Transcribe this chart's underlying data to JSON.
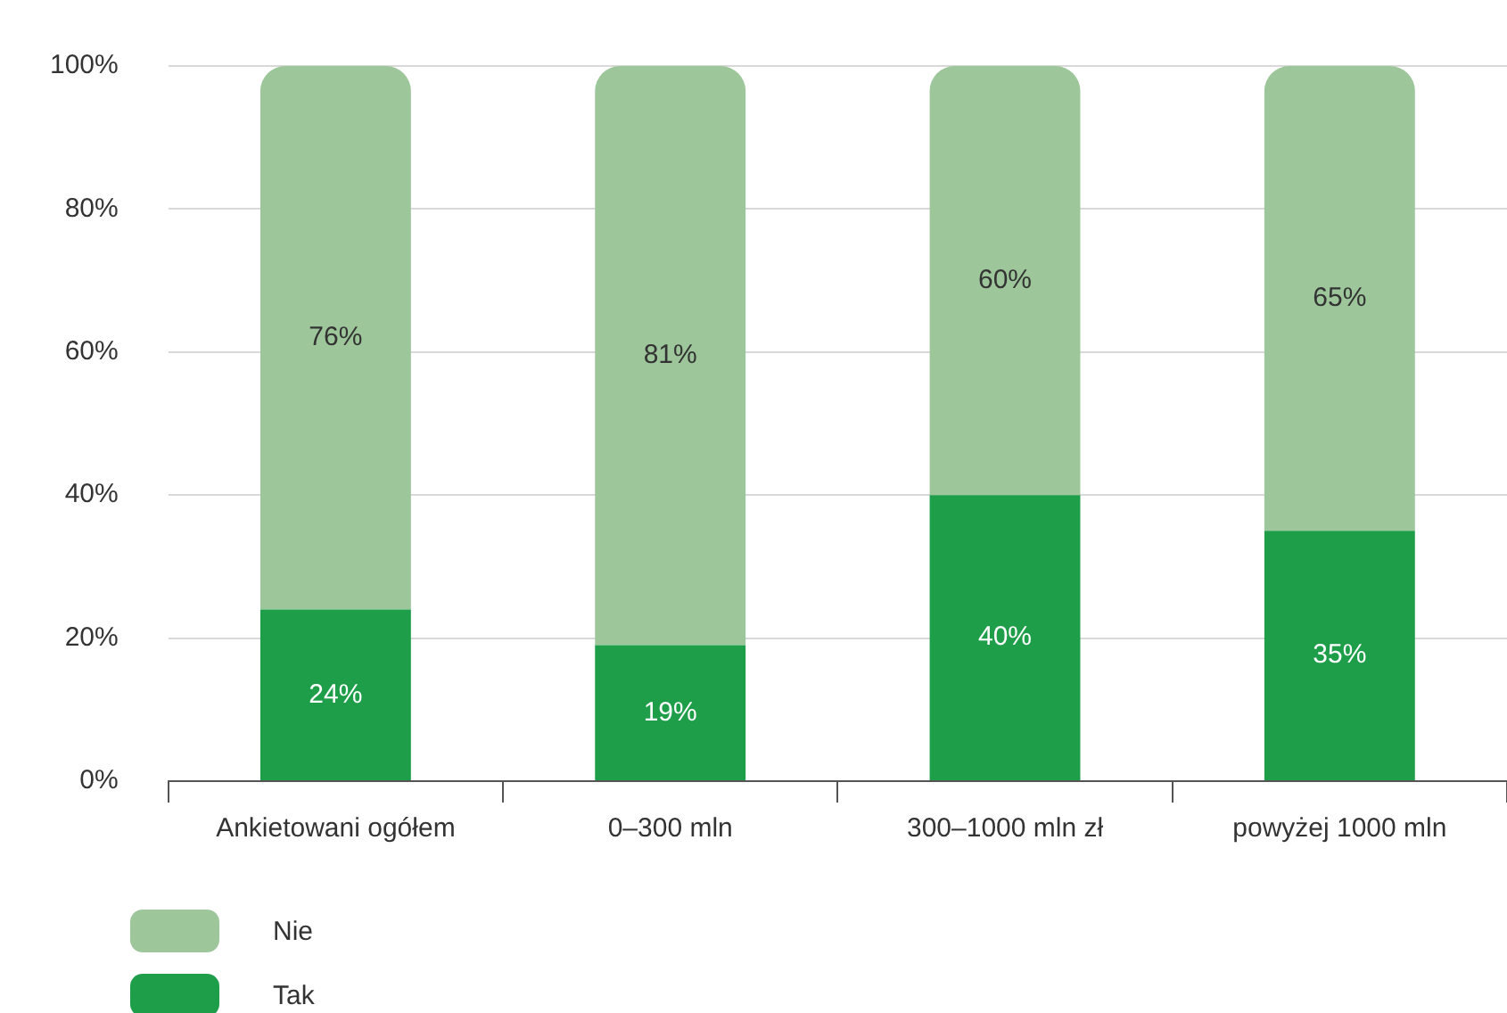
{
  "chart_data": {
    "type": "bar",
    "stacked": true,
    "categories": [
      "Ankietowani ogółem",
      "0–300 mln",
      "300–1000 mln zł",
      "powyżej 1000 mln"
    ],
    "series": [
      {
        "name": "Tak",
        "color": "#1f9e4a",
        "values": [
          24,
          19,
          40,
          35
        ],
        "value_labels": [
          "24%",
          "19%",
          "40%",
          "35%"
        ]
      },
      {
        "name": "Nie",
        "color": "#9dc69a",
        "values": [
          76,
          81,
          60,
          65
        ],
        "value_labels": [
          "76%",
          "81%",
          "60%",
          "65%"
        ]
      }
    ],
    "ylim": [
      0,
      100
    ],
    "yticks": [
      {
        "value": 0,
        "label": "0%"
      },
      {
        "value": 20,
        "label": "20%"
      },
      {
        "value": 40,
        "label": "40%"
      },
      {
        "value": 60,
        "label": "60%"
      },
      {
        "value": 80,
        "label": "80%"
      },
      {
        "value": 100,
        "label": "100%"
      }
    ],
    "grid": "y",
    "legend": "bottom left"
  }
}
